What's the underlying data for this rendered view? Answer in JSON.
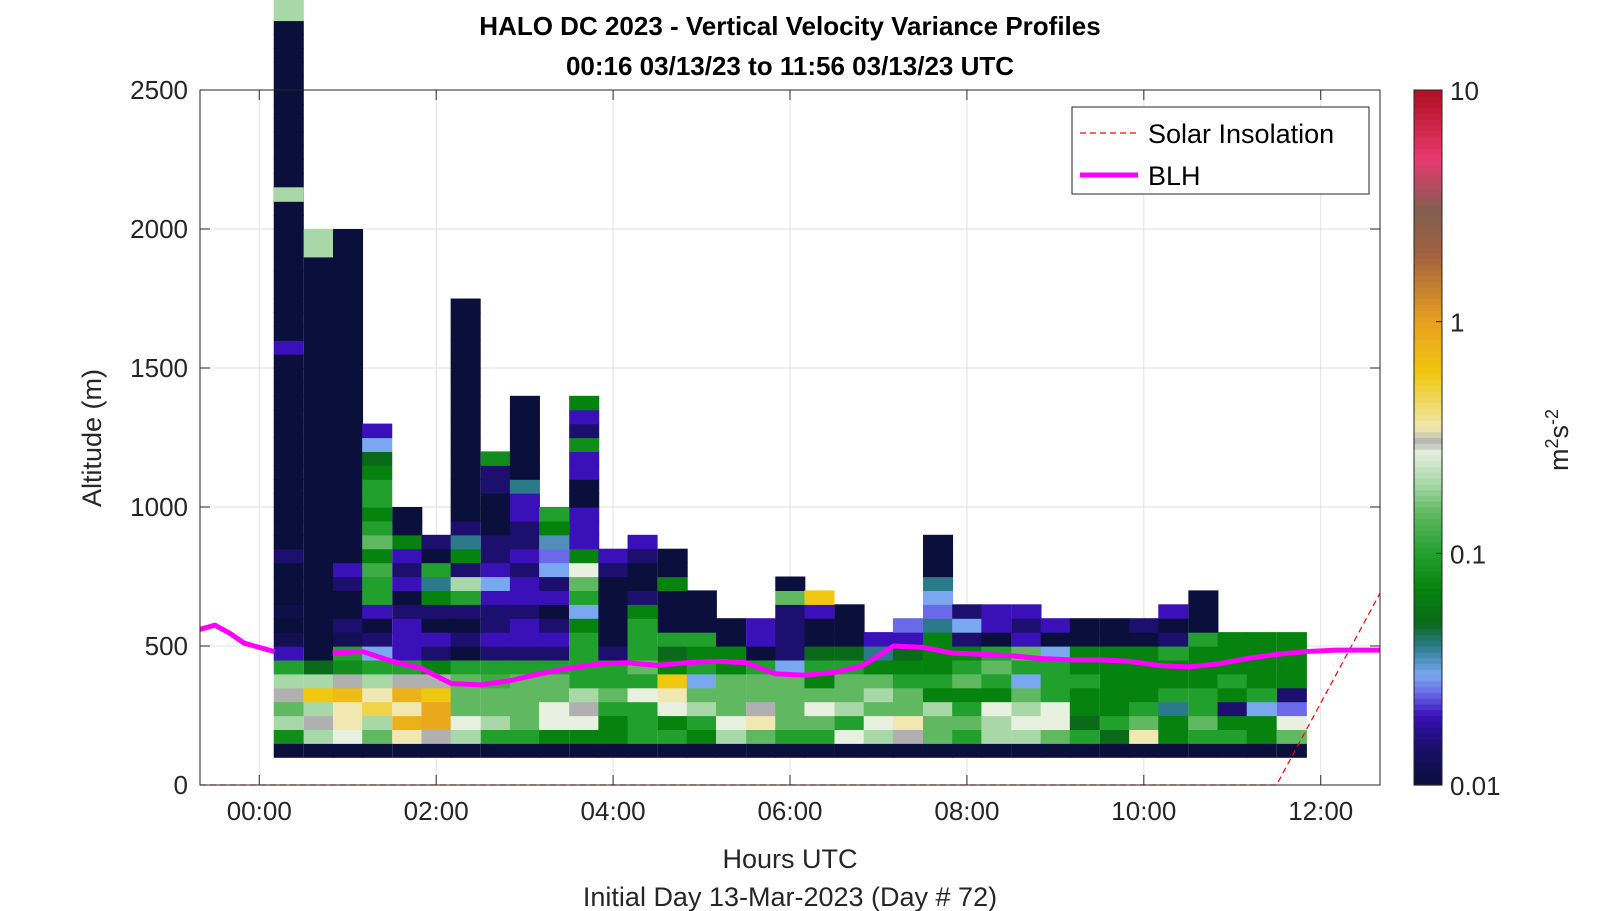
{
  "chart_data": {
    "type": "heatmap",
    "title": "HALO DC 2023 - Vertical Velocity Variance Profiles",
    "subtitle": "00:16 03/13/23 to 11:56 03/13/23  UTC",
    "xlabel": "Hours UTC",
    "footer": "Initial Day 13-Mar-2023 (Day # 72)",
    "ylabel": "Altitude (m)",
    "colorbar_label_base": "m",
    "colorbar_label_sup1": "2",
    "colorbar_label_mid": "s",
    "colorbar_label_sup2": "-2",
    "x_ticks": [
      "00:00",
      "02:00",
      "04:00",
      "06:00",
      "08:00",
      "10:00",
      "12:00"
    ],
    "x_tick_hours": [
      0,
      2,
      4,
      6,
      8,
      10,
      12
    ],
    "xlim": [
      -0.67,
      12.67
    ],
    "y_ticks": [
      "0",
      "500",
      "1000",
      "1500",
      "2000",
      "2500"
    ],
    "y_tick_values": [
      0,
      500,
      1000,
      1500,
      2000,
      2500
    ],
    "ylim": [
      0,
      2500
    ],
    "colorbar_ticks": [
      "0.01",
      "0.1",
      "1",
      "10"
    ],
    "colorbar_tick_values": [
      0.01,
      0.1,
      1,
      10
    ],
    "colorbar_scale": "log",
    "colorbar_range": [
      0.01,
      10
    ],
    "grid": true,
    "legend_position": "top-right",
    "legend": [
      {
        "label": "Solar Insolation",
        "style": "dashed",
        "color": "#ff0000"
      },
      {
        "label": "BLH",
        "style": "solid",
        "color": "#ff00ff"
      }
    ],
    "colormap": [
      {
        "v": 0.01,
        "c": "#0a0f3c"
      },
      {
        "v": 0.015,
        "c": "#1c0f6e"
      },
      {
        "v": 0.02,
        "c": "#3a10b8"
      },
      {
        "v": 0.025,
        "c": "#6a6ae8"
      },
      {
        "v": 0.03,
        "c": "#7aa8f0"
      },
      {
        "v": 0.04,
        "c": "#2a7a8a"
      },
      {
        "v": 0.05,
        "c": "#0a6a1a"
      },
      {
        "v": 0.07,
        "c": "#06820e"
      },
      {
        "v": 0.1,
        "c": "#22a02e"
      },
      {
        "v": 0.15,
        "c": "#60b860"
      },
      {
        "v": 0.2,
        "c": "#a8d8a8"
      },
      {
        "v": 0.28,
        "c": "#e8f0e0"
      },
      {
        "v": 0.3,
        "c": "#b0b0b0"
      },
      {
        "v": 0.35,
        "c": "#f0e8b0"
      },
      {
        "v": 0.6,
        "c": "#f0c810"
      },
      {
        "v": 1,
        "c": "#e8a020"
      },
      {
        "v": 2,
        "c": "#a06040"
      },
      {
        "v": 3,
        "c": "#806050"
      },
      {
        "v": 5,
        "c": "#e83a70"
      },
      {
        "v": 10,
        "c": "#b01020"
      }
    ],
    "time_bin_hours": 0.333,
    "altitude_bin_m": 50,
    "x": [
      0.33,
      0.67,
      1.0,
      1.33,
      1.67,
      2.0,
      2.33,
      2.67,
      3.0,
      3.33,
      3.67,
      4.0,
      4.33,
      4.67,
      5.0,
      5.33,
      5.67,
      6.0,
      6.33,
      6.67,
      7.0,
      7.33,
      7.67,
      8.0,
      8.33,
      8.67,
      9.0,
      9.33,
      9.67,
      10.0,
      10.33,
      10.67,
      11.0,
      11.33,
      11.67
    ],
    "profiles": [
      {
        "bottom": 100,
        "values": [
          0.01,
          0.08,
          0.2,
          0.15,
          0.3,
          0.2,
          0.1,
          0.02,
          0.012,
          0.01,
          0.011,
          0.01,
          0.01,
          0.01,
          0.015,
          0.01,
          0.01,
          0.01,
          0.01,
          0.01,
          0.01,
          0.01,
          0.01,
          0.01,
          0.01,
          0.01,
          0.01,
          0.01,
          0.01,
          0.02,
          0.01,
          0.01,
          0.01,
          0.01,
          0.01,
          0.01,
          0.01,
          0.01,
          0.01,
          0.01,
          0.012,
          0.01,
          0.01,
          0.01,
          0.01,
          0.01,
          0.01,
          0.01,
          0.01,
          0.01,
          0.01,
          0.01,
          0.01,
          0.2,
          0.2
        ]
      },
      {
        "bottom": 100,
        "values": [
          0.01,
          0.2,
          0.3,
          0.2,
          0.6,
          0.2,
          0.05,
          0.01,
          0.01,
          0.01,
          0.01,
          0.01,
          0.01,
          0.01,
          0.01,
          0.01,
          0.01,
          0.01,
          0.01,
          0.01,
          0.01,
          0.01,
          0.01,
          0.01,
          0.01,
          0.01,
          0.01,
          0.01,
          0.01,
          0.01,
          0.01,
          0.01,
          0.01,
          0.01,
          0.01,
          0.01,
          0.2,
          0.2
        ]
      },
      {
        "bottom": 100,
        "values": [
          0.01,
          0.28,
          0.35,
          0.35,
          0.7,
          0.3,
          0.08,
          0.1,
          0.012,
          0.015,
          0.01,
          0.01,
          0.015,
          0.02,
          0.01,
          0.01,
          0.01,
          0.01,
          0.01,
          0.01,
          0.01,
          0.01,
          0.01,
          0.01,
          0.01,
          0.01,
          0.01,
          0.01,
          0.01,
          0.01,
          0.01,
          0.01,
          0.01,
          0.01,
          0.01,
          0.01,
          0.01,
          0.01
        ]
      },
      {
        "bottom": 100,
        "values": [
          0.01,
          0.15,
          0.2,
          0.5,
          0.35,
          0.2,
          0.1,
          0.03,
          0.015,
          0.01,
          0.02,
          0.1,
          0.1,
          0.12,
          0.07,
          0.15,
          0.1,
          0.07,
          0.1,
          0.1,
          0.07,
          0.05,
          0.03,
          0.02
        ]
      },
      {
        "bottom": 100,
        "values": [
          0.01,
          0.35,
          0.8,
          0.35,
          0.8,
          0.3,
          0.1,
          0.02,
          0.02,
          0.02,
          0.015,
          0.01,
          0.02,
          0.015,
          0.02,
          0.07,
          0.01,
          0.01
        ]
      },
      {
        "bottom": 100,
        "values": [
          0.01,
          0.3,
          0.9,
          0.9,
          0.6,
          0.3,
          0.07,
          0.015,
          0.02,
          0.01,
          0.015,
          0.07,
          0.04,
          0.1,
          0.01,
          0.015
        ]
      },
      {
        "bottom": 100,
        "values": [
          0.01,
          0.2,
          0.28,
          0.15,
          0.15,
          0.15,
          0.1,
          0.01,
          0.015,
          0.01,
          0.015,
          0.1,
          0.2,
          0.015,
          0.07,
          0.04,
          0.015,
          0.01,
          0.01,
          0.01,
          0.01,
          0.01,
          0.01,
          0.01,
          0.01,
          0.01,
          0.01,
          0.01,
          0.01,
          0.01,
          0.01,
          0.01,
          0.01
        ]
      },
      {
        "bottom": 100,
        "values": [
          0.01,
          0.1,
          0.2,
          0.15,
          0.15,
          0.12,
          0.1,
          0.015,
          0.02,
          0.015,
          0.015,
          0.02,
          0.03,
          0.02,
          0.015,
          0.015,
          0.01,
          0.01,
          0.01,
          0.015,
          0.015,
          0.08
        ]
      },
      {
        "bottom": 100,
        "values": [
          0.01,
          0.1,
          0.15,
          0.15,
          0.15,
          0.15,
          0.1,
          0.015,
          0.02,
          0.02,
          0.015,
          0.02,
          0.02,
          0.015,
          0.02,
          0.015,
          0.015,
          0.02,
          0.02,
          0.04,
          0.01,
          0.01,
          0.01,
          0.01,
          0.01,
          0.01
        ]
      },
      {
        "bottom": 100,
        "values": [
          0.01,
          0.07,
          0.28,
          0.28,
          0.15,
          0.15,
          0.1,
          0.015,
          0.02,
          0.015,
          0.01,
          0.02,
          0.015,
          0.03,
          0.025,
          0.035,
          0.07,
          0.1
        ]
      },
      {
        "bottom": 100,
        "values": [
          0.01,
          0.07,
          0.28,
          0.3,
          0.2,
          0.1,
          0.1,
          0.1,
          0.1,
          0.07,
          0.03,
          0.1,
          0.15,
          0.28,
          0.07,
          0.02,
          0.02,
          0.02,
          0.01,
          0.01,
          0.02,
          0.02,
          0.08,
          0.015,
          0.02,
          0.07
        ]
      },
      {
        "bottom": 100,
        "values": [
          0.01,
          0.07,
          0.07,
          0.1,
          0.15,
          0.1,
          0.1,
          0.015,
          0.01,
          0.01,
          0.01,
          0.01,
          0.01,
          0.015,
          0.02
        ]
      },
      {
        "bottom": 100,
        "values": [
          0.01,
          0.1,
          0.1,
          0.1,
          0.28,
          0.1,
          0.15,
          0.1,
          0.1,
          0.1,
          0.07,
          0.015,
          0.01,
          0.01,
          0.015,
          0.02
        ]
      },
      {
        "bottom": 100,
        "values": [
          0.01,
          0.1,
          0.07,
          0.28,
          0.35,
          0.6,
          0.07,
          0.05,
          0.1,
          0.01,
          0.01,
          0.01,
          0.07,
          0.01,
          0.01
        ]
      },
      {
        "bottom": 100,
        "values": [
          0.01,
          0.07,
          0.1,
          0.2,
          0.15,
          0.03,
          0.1,
          0.07,
          0.1,
          0.01,
          0.01,
          0.01
        ]
      },
      {
        "bottom": 100,
        "values": [
          0.01,
          0.2,
          0.28,
          0.15,
          0.15,
          0.15,
          0.07,
          0.07,
          0.01,
          0.01
        ]
      },
      {
        "bottom": 100,
        "values": [
          0.01,
          0.15,
          0.35,
          0.3,
          0.15,
          0.15,
          0.1,
          0.01,
          0.02,
          0.02
        ]
      },
      {
        "bottom": 100,
        "values": [
          0.01,
          0.1,
          0.15,
          0.15,
          0.15,
          0.15,
          0.03,
          0.015,
          0.015,
          0.015,
          0.015,
          0.15,
          0.01
        ]
      },
      {
        "bottom": 100,
        "values": [
          0.01,
          0.1,
          0.15,
          0.28,
          0.15,
          0.07,
          0.1,
          0.05,
          0.01,
          0.01,
          0.02,
          0.6
        ]
      },
      {
        "bottom": 100,
        "values": [
          0.01,
          0.28,
          0.1,
          0.2,
          0.15,
          0.15,
          0.1,
          0.05,
          0.01,
          0.01,
          0.01
        ]
      },
      {
        "bottom": 100,
        "values": [
          0.01,
          0.2,
          0.28,
          0.15,
          0.2,
          0.15,
          0.07,
          0.04,
          0.02
        ]
      },
      {
        "bottom": 100,
        "values": [
          0.01,
          0.3,
          0.35,
          0.15,
          0.15,
          0.1,
          0.07,
          0.05,
          0.02,
          0.025
        ]
      },
      {
        "bottom": 100,
        "values": [
          0.01,
          0.15,
          0.15,
          0.2,
          0.07,
          0.1,
          0.07,
          0.07,
          0.07,
          0.04,
          0.025,
          0.03,
          0.04,
          0.01,
          0.01,
          0.01
        ]
      },
      {
        "bottom": 100,
        "values": [
          0.01,
          0.1,
          0.15,
          0.1,
          0.07,
          0.15,
          0.1,
          0.07,
          0.015,
          0.03,
          0.015
        ]
      },
      {
        "bottom": 100,
        "values": [
          0.01,
          0.2,
          0.2,
          0.28,
          0.07,
          0.1,
          0.15,
          0.1,
          0.01,
          0.02,
          0.02
        ]
      },
      {
        "bottom": 100,
        "values": [
          0.01,
          0.2,
          0.28,
          0.2,
          0.15,
          0.03,
          0.1,
          0.15,
          0.02,
          0.015,
          0.02
        ]
      },
      {
        "bottom": 100,
        "values": [
          0.01,
          0.15,
          0.28,
          0.28,
          0.1,
          0.1,
          0.1,
          0.03,
          0.01,
          0.02
        ]
      },
      {
        "bottom": 100,
        "values": [
          0.01,
          0.1,
          0.05,
          0.07,
          0.07,
          0.1,
          0.07,
          0.07,
          0.01,
          0.01
        ]
      },
      {
        "bottom": 100,
        "values": [
          0.01,
          0.05,
          0.1,
          0.07,
          0.07,
          0.07,
          0.07,
          0.07,
          0.01,
          0.01
        ]
      },
      {
        "bottom": 100,
        "values": [
          0.01,
          0.35,
          0.15,
          0.1,
          0.07,
          0.07,
          0.07,
          0.07,
          0.01,
          0.015
        ]
      },
      {
        "bottom": 100,
        "values": [
          0.01,
          0.07,
          0.07,
          0.04,
          0.1,
          0.07,
          0.07,
          0.1,
          0.015,
          0.01,
          0.02
        ]
      },
      {
        "bottom": 100,
        "values": [
          0.01,
          0.1,
          0.15,
          0.1,
          0.1,
          0.07,
          0.07,
          0.07,
          0.1,
          0.01,
          0.01,
          0.01
        ]
      },
      {
        "bottom": 100,
        "values": [
          0.01,
          0.1,
          0.07,
          0.015,
          0.07,
          0.1,
          0.07,
          0.07,
          0.07
        ]
      },
      {
        "bottom": 100,
        "values": [
          0.01,
          0.07,
          0.07,
          0.03,
          0.1,
          0.07,
          0.07,
          0.07,
          0.07
        ]
      },
      {
        "bottom": 100,
        "values": [
          0.01,
          0.15,
          0.28,
          0.025,
          0.015,
          0.07,
          0.07,
          0.07,
          0.07
        ]
      }
    ],
    "extra_profile": {
      "x": 0.33,
      "top_cells_bottom": 2100,
      "values": [
        0.2
      ]
    },
    "blh": {
      "name": "BLH",
      "x": [
        -0.67,
        -0.5,
        -0.33,
        -0.17,
        0.0,
        0.17,
        0.5,
        0.83,
        1.17,
        1.5,
        1.83,
        2.17,
        2.5,
        2.83,
        3.17,
        3.5,
        3.83,
        4.17,
        4.5,
        4.83,
        5.17,
        5.5,
        5.83,
        6.17,
        6.5,
        6.83,
        7.17,
        7.5,
        7.83,
        8.17,
        8.5,
        8.83,
        9.17,
        9.5,
        9.83,
        10.17,
        10.5,
        10.83,
        11.17,
        11.5,
        11.83,
        12.17,
        12.5,
        12.67
      ],
      "y": [
        560,
        575,
        545,
        510,
        495,
        480,
        null,
        475,
        480,
        445,
        420,
        365,
        360,
        375,
        400,
        420,
        435,
        440,
        430,
        440,
        445,
        440,
        400,
        395,
        405,
        430,
        500,
        495,
        475,
        470,
        465,
        455,
        450,
        450,
        445,
        430,
        425,
        435,
        455,
        470,
        480,
        485,
        485,
        485
      ],
      "gap_after_x": 0.17
    },
    "solar": {
      "name": "Solar Insolation",
      "x": [
        -0.67,
        11.5,
        12.67
      ],
      "y": [
        0,
        0,
        690
      ]
    }
  }
}
